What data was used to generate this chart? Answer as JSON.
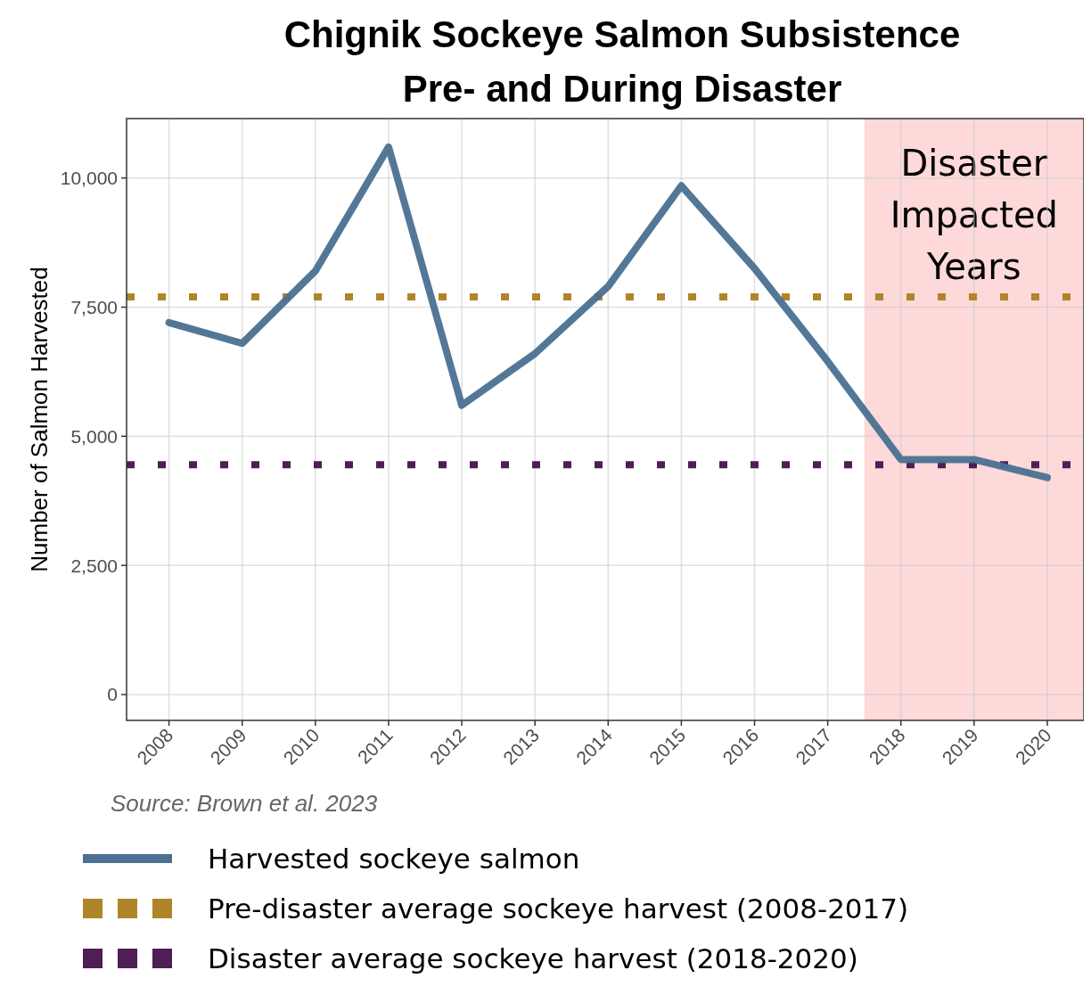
{
  "chart_data": {
    "type": "line",
    "title": "Chignik Sockeye Salmon Subsistence",
    "subtitle": "Pre- and During Disaster",
    "ylabel": "Number of Salmon Harvested",
    "x": [
      2008,
      2009,
      2010,
      2011,
      2012,
      2013,
      2014,
      2015,
      2016,
      2017,
      2018,
      2019,
      2020
    ],
    "series": [
      {
        "name": "Harvested sockeye salmon",
        "color": "#4a7191",
        "values": [
          7200,
          6800,
          8200,
          10600,
          5600,
          6600,
          7900,
          9850,
          8250,
          6450,
          4550,
          4550,
          4200
        ]
      }
    ],
    "xlim": [
      2007.42,
      2020.5
    ],
    "xticks": [
      2008,
      2009,
      2010,
      2011,
      2012,
      2013,
      2014,
      2015,
      2016,
      2017,
      2018,
      2019,
      2020
    ],
    "ylim": [
      -500,
      11150
    ],
    "yticks": [
      0,
      {
        "value": 2500,
        "label": "2,500"
      },
      {
        "value": 5000,
        "label": "5,000"
      },
      {
        "value": 7500,
        "label": "7,500"
      },
      {
        "value": 10000,
        "label": "10,000"
      }
    ],
    "ref_lines": [
      {
        "axis": "y",
        "value": 7700,
        "label": "Pre-disaster average sockeye harvest (2008-2017)",
        "color": "#b08529",
        "line_style": "dotted"
      },
      {
        "axis": "y",
        "value": 4450,
        "label": "Disaster average sockeye harvest (2018-2020)",
        "color": "#4f1e55",
        "line_style": "dotted"
      }
    ],
    "bands": [
      {
        "axis": "x",
        "from": 2017.5,
        "to": 2020.5,
        "label": "Disaster Impacted Years",
        "color": "#fdd9d9"
      }
    ],
    "annotations": [
      "Source: Brown et al. 2023"
    ],
    "grid": true,
    "legend": "bottom",
    "line_style": "solid",
    "marker": "none"
  }
}
